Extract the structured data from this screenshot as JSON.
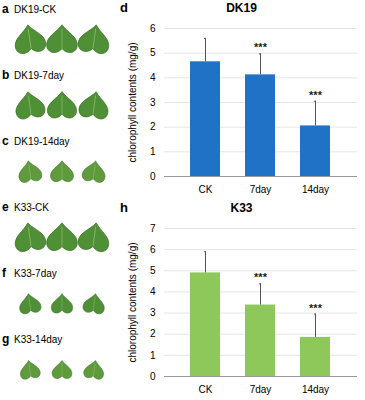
{
  "photos": [
    {
      "panel": "a",
      "label": "DK19-CK"
    },
    {
      "panel": "b",
      "label": "DK19-7day"
    },
    {
      "panel": "c",
      "label": "DK19-14day"
    },
    {
      "panel": "e",
      "label": "K33-CK"
    },
    {
      "panel": "f",
      "label": "K33-7day"
    },
    {
      "panel": "g",
      "label": "K33-14day"
    }
  ],
  "chart_data": [
    {
      "type": "bar",
      "panel": "d",
      "title": "DK19",
      "ylabel": "chlorophyll contents (mg/g)",
      "categories": [
        "CK",
        "7day",
        "14day"
      ],
      "values": [
        4.65,
        4.12,
        2.05
      ],
      "errors": [
        0.95,
        0.85,
        1.0
      ],
      "significance": [
        null,
        "***",
        "***"
      ],
      "color": "#1f72c6",
      "ylim": [
        0,
        6
      ],
      "yticks": [
        0,
        1,
        2,
        3,
        4,
        5,
        6
      ],
      "grid": true
    },
    {
      "type": "bar",
      "panel": "h",
      "title": "K33",
      "ylabel": "chlorophyll contents (mg/g)",
      "categories": [
        "CK",
        "7day",
        "14day"
      ],
      "values": [
        4.9,
        3.38,
        1.85
      ],
      "errors": [
        1.0,
        1.0,
        1.1
      ],
      "significance": [
        null,
        "***",
        "***"
      ],
      "color": "#8fc85a",
      "ylim": [
        0,
        7
      ],
      "yticks": [
        0,
        1,
        2,
        3,
        4,
        5,
        6,
        7
      ],
      "grid": true
    }
  ]
}
